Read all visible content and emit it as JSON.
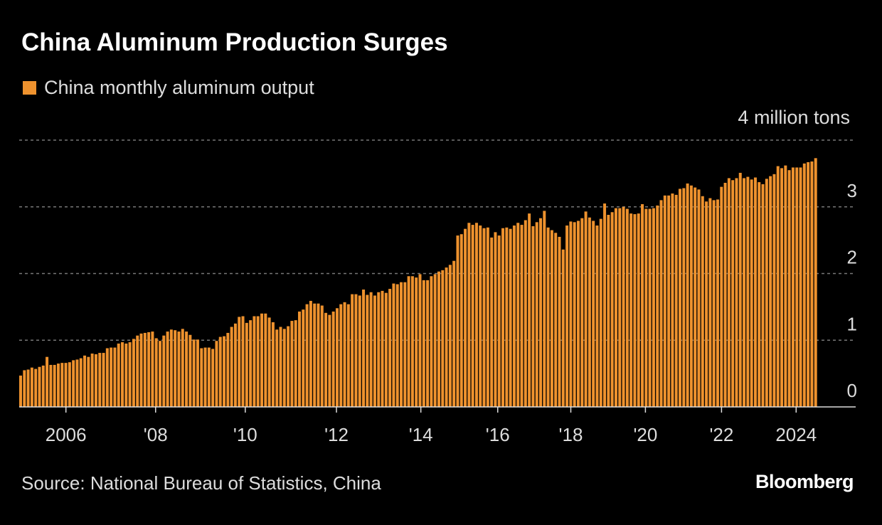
{
  "title": "China Aluminum Production Surges",
  "legend_label": "China monthly aluminum output",
  "unit_label": "4 million tons",
  "source": "Source: National Bureau of Statistics, China",
  "brand": "Bloomberg",
  "colors": {
    "bar": "#EE922E",
    "background": "#000000",
    "grid": "#777777"
  },
  "chart_data": {
    "type": "bar",
    "title": "China Aluminum Production Surges",
    "series": [
      {
        "name": "China monthly aluminum output",
        "values": [
          0.47,
          0.55,
          0.56,
          0.59,
          0.57,
          0.6,
          0.62,
          0.75,
          0.63,
          0.63,
          0.65,
          0.66,
          0.66,
          0.67,
          0.7,
          0.71,
          0.73,
          0.77,
          0.75,
          0.8,
          0.79,
          0.81,
          0.81,
          0.88,
          0.89,
          0.89,
          0.95,
          0.97,
          0.95,
          0.97,
          1.02,
          1.07,
          1.1,
          1.11,
          1.12,
          1.13,
          1.03,
          0.99,
          1.07,
          1.13,
          1.16,
          1.15,
          1.13,
          1.17,
          1.13,
          1.08,
          1.01,
          1.01,
          0.88,
          0.89,
          0.89,
          0.87,
          0.99,
          1.05,
          1.06,
          1.11,
          1.2,
          1.25,
          1.35,
          1.36,
          1.26,
          1.3,
          1.36,
          1.36,
          1.4,
          1.4,
          1.34,
          1.27,
          1.16,
          1.2,
          1.17,
          1.21,
          1.29,
          1.3,
          1.43,
          1.46,
          1.54,
          1.59,
          1.55,
          1.55,
          1.52,
          1.41,
          1.38,
          1.43,
          1.48,
          1.54,
          1.57,
          1.54,
          1.69,
          1.69,
          1.67,
          1.76,
          1.68,
          1.72,
          1.67,
          1.72,
          1.74,
          1.71,
          1.77,
          1.85,
          1.84,
          1.87,
          1.87,
          1.96,
          1.96,
          1.94,
          1.99,
          1.9,
          1.9,
          1.96,
          1.99,
          2.03,
          2.05,
          2.09,
          2.13,
          2.19,
          2.57,
          2.59,
          2.67,
          2.76,
          2.73,
          2.76,
          2.72,
          2.68,
          2.69,
          2.54,
          2.62,
          2.57,
          2.68,
          2.69,
          2.67,
          2.72,
          2.76,
          2.73,
          2.8,
          2.9,
          2.71,
          2.77,
          2.83,
          2.94,
          2.69,
          2.65,
          2.61,
          2.55,
          2.36,
          2.72,
          2.78,
          2.77,
          2.79,
          2.83,
          2.93,
          2.84,
          2.79,
          2.72,
          2.82,
          3.05,
          2.88,
          2.92,
          2.98,
          2.98,
          3.0,
          2.97,
          2.9,
          2.89,
          2.9,
          3.04,
          2.97,
          2.97,
          2.98,
          3.02,
          3.1,
          3.17,
          3.17,
          3.2,
          3.18,
          3.27,
          3.28,
          3.35,
          3.32,
          3.29,
          3.26,
          3.16,
          3.08,
          3.13,
          3.1,
          3.11,
          3.3,
          3.36,
          3.43,
          3.4,
          3.43,
          3.51,
          3.43,
          3.45,
          3.41,
          3.44,
          3.37,
          3.34,
          3.42,
          3.46,
          3.49,
          3.61,
          3.58,
          3.62,
          3.55,
          3.59,
          3.59,
          3.59,
          3.65,
          3.67,
          3.68,
          3.73
        ]
      }
    ],
    "xlabel": "",
    "ylabel": "million tons",
    "ylim": [
      0,
      4
    ],
    "yticks": [
      {
        "value": 0,
        "label": "0"
      },
      {
        "value": 1,
        "label": "1"
      },
      {
        "value": 2,
        "label": "2"
      },
      {
        "value": 3,
        "label": "3"
      }
    ],
    "xticks": [
      {
        "label": "2006",
        "bar_index": 12.4
      },
      {
        "label": "'08",
        "bar_index": 36.2
      },
      {
        "label": "'10",
        "bar_index": 60
      },
      {
        "label": "'12",
        "bar_index": 84.2
      },
      {
        "label": "'14",
        "bar_index": 106.6
      },
      {
        "label": "'16",
        "bar_index": 127
      },
      {
        "label": "'18",
        "bar_index": 146.4
      },
      {
        "label": "'20",
        "bar_index": 166.2
      },
      {
        "label": "'22",
        "bar_index": 186.4
      },
      {
        "label": "2024",
        "bar_index": 206.2
      }
    ],
    "grid": true,
    "legend_position": "top-left"
  }
}
